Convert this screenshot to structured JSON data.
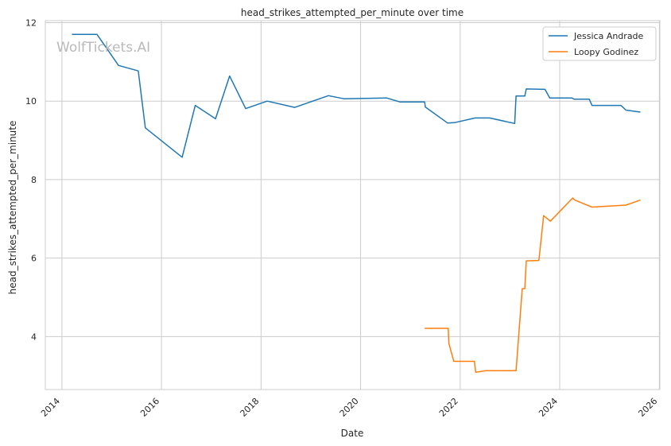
{
  "chart_data": {
    "type": "line",
    "title": "head_strikes_attempted_per_minute over time",
    "xlabel": "Date",
    "ylabel": "head_strikes_attempted_per_minute",
    "xlim": [
      "2013-09-01",
      "2026-01-05"
    ],
    "ylim": [
      2.65,
      12.05
    ],
    "x_ticks": [
      "2014",
      "2016",
      "2018",
      "2020",
      "2022",
      "2024",
      "2026"
    ],
    "y_ticks": [
      4,
      6,
      8,
      10,
      12
    ],
    "grid": true,
    "legend_position": "top-right",
    "watermark": "WolfTickets.AI",
    "series": [
      {
        "name": "Jessica Andrade",
        "color": "#1f77b4",
        "points": [
          [
            "2014-03-15",
            11.7
          ],
          [
            "2014-09-15",
            11.7
          ],
          [
            "2015-02-20",
            10.91
          ],
          [
            "2015-07-15",
            10.77
          ],
          [
            "2015-09-05",
            9.32
          ],
          [
            "2016-06-01",
            8.57
          ],
          [
            "2016-09-05",
            9.89
          ],
          [
            "2017-02-01",
            9.55
          ],
          [
            "2017-05-15",
            10.64
          ],
          [
            "2017-09-10",
            9.81
          ],
          [
            "2018-02-15",
            10.0
          ],
          [
            "2018-09-05",
            9.84
          ],
          [
            "2019-05-10",
            10.14
          ],
          [
            "2019-08-31",
            10.06
          ],
          [
            "2020-07-10",
            10.08
          ],
          [
            "2020-10-15",
            9.98
          ],
          [
            "2021-04-15",
            9.98
          ],
          [
            "2021-04-20",
            9.85
          ],
          [
            "2021-10-01",
            9.44
          ],
          [
            "2021-11-20",
            9.45
          ],
          [
            "2022-04-20",
            9.57
          ],
          [
            "2022-08-05",
            9.57
          ],
          [
            "2023-02-05",
            9.43
          ],
          [
            "2023-02-15",
            10.13
          ],
          [
            "2023-04-20",
            10.13
          ],
          [
            "2023-05-01",
            10.31
          ],
          [
            "2023-09-15",
            10.3
          ],
          [
            "2023-10-20",
            10.08
          ],
          [
            "2024-04-01",
            10.08
          ],
          [
            "2024-04-15",
            10.05
          ],
          [
            "2024-08-05",
            10.05
          ],
          [
            "2024-08-25",
            9.89
          ],
          [
            "2025-03-25",
            9.89
          ],
          [
            "2025-05-01",
            9.77
          ],
          [
            "2025-08-15",
            9.72
          ]
        ]
      },
      {
        "name": "Loopy Godinez",
        "color": "#ff7f0e",
        "points": [
          [
            "2021-04-15",
            4.21
          ],
          [
            "2021-10-05",
            4.21
          ],
          [
            "2021-10-10",
            3.83
          ],
          [
            "2021-11-15",
            3.37
          ],
          [
            "2022-04-15",
            3.37
          ],
          [
            "2022-04-25",
            3.09
          ],
          [
            "2022-07-10",
            3.13
          ],
          [
            "2023-02-15",
            3.13
          ],
          [
            "2023-04-01",
            5.22
          ],
          [
            "2023-04-20",
            5.22
          ],
          [
            "2023-05-01",
            5.93
          ],
          [
            "2023-08-01",
            5.94
          ],
          [
            "2023-09-05",
            7.08
          ],
          [
            "2023-10-25",
            6.94
          ],
          [
            "2024-04-05",
            7.53
          ],
          [
            "2024-04-20",
            7.48
          ],
          [
            "2024-08-25",
            7.3
          ],
          [
            "2025-05-01",
            7.35
          ],
          [
            "2025-08-15",
            7.48
          ]
        ]
      }
    ]
  }
}
